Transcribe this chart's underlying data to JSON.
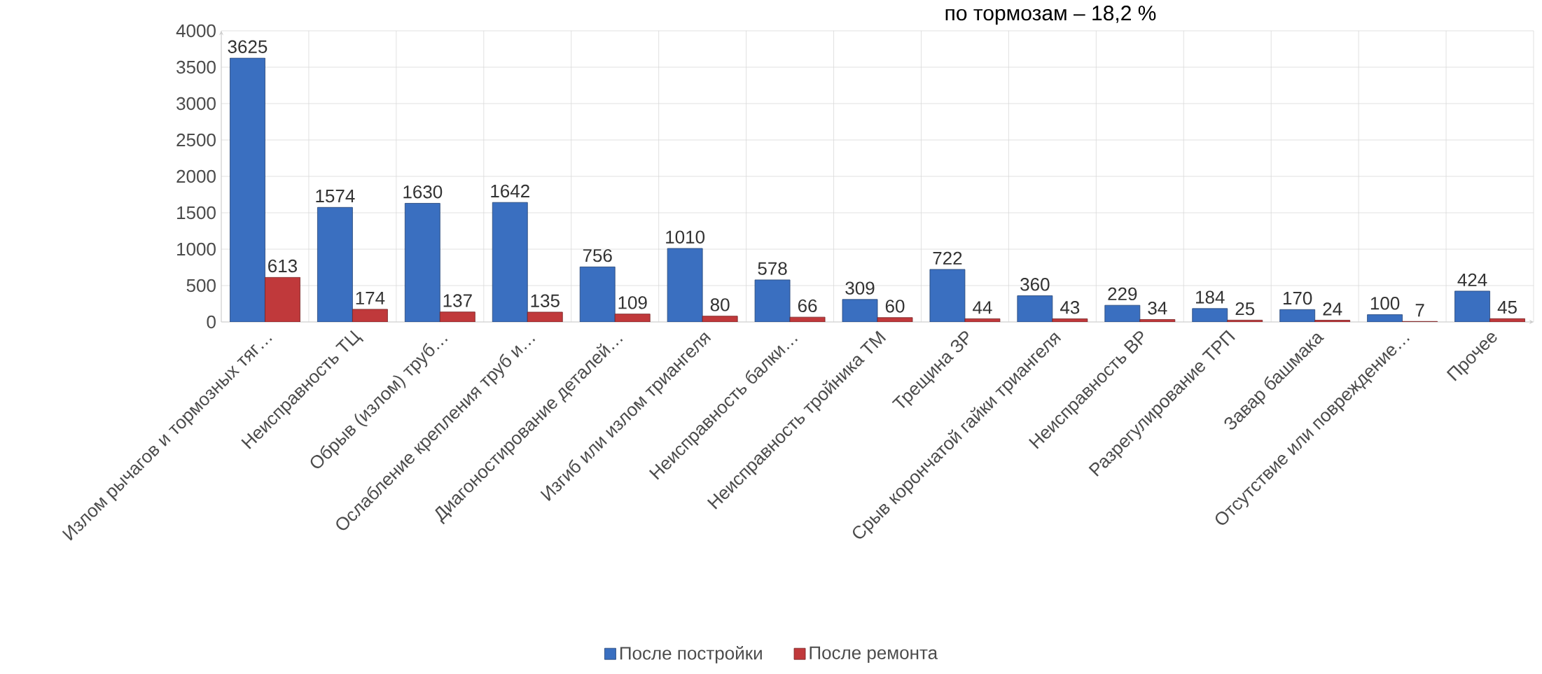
{
  "chart_data": {
    "type": "bar",
    "title": "по тормозам – 18,2 %",
    "categories": [
      "Излом рычагов и тормозных тяг…",
      "Неисправность ТЦ",
      "Обрыв (излом) труб…",
      "Ослабление крепления труб и…",
      "Диагоностирование деталей…",
      "Изгиб или излом триангеля",
      "Неисправность балки…",
      "Неисправность тройника ТМ",
      "Трещина ЗР",
      "Срыв корончатой гайки триангеля",
      "Неисправность ВР",
      "Разрегулирование ТРП",
      "Завар башмака",
      "Отсутствие или повреждение…",
      "Прочее"
    ],
    "series": [
      {
        "name": "После постройки",
        "color": "#3a6fc0",
        "values": [
          3625,
          1574,
          1630,
          1642,
          756,
          1010,
          578,
          309,
          722,
          360,
          229,
          184,
          170,
          100,
          424
        ]
      },
      {
        "name": "После ремонта",
        "color": "#c0393b",
        "values": [
          613,
          174,
          137,
          135,
          109,
          80,
          66,
          60,
          44,
          43,
          34,
          25,
          24,
          7,
          45
        ]
      }
    ],
    "ylim": [
      0,
      4000
    ],
    "yticks": [
      0,
      500,
      1000,
      1500,
      2000,
      2500,
      3000,
      3500,
      4000
    ],
    "grid": true,
    "legend": "bottom",
    "data_labels": true
  }
}
